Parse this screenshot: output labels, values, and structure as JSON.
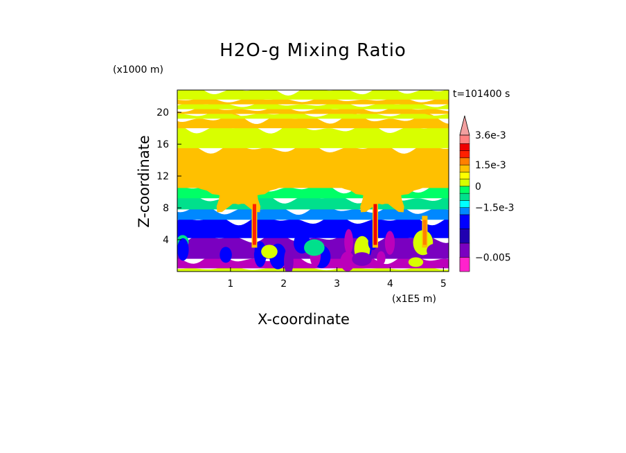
{
  "chart_data": {
    "type": "heatmap",
    "title": "H2O-g Mixing Ratio",
    "xlabel": "X-coordinate",
    "ylabel": "Z-coordinate",
    "x_unit": "(x1E5 m)",
    "z_unit": "(x1000 m)",
    "time_label": "t=101400 s",
    "xlim": [
      0,
      5.1
    ],
    "ylim": [
      0,
      22.8
    ],
    "x_ticks": [
      1,
      2,
      3,
      4,
      5
    ],
    "y_ticks": [
      4,
      8,
      12,
      16,
      20
    ],
    "x_tick_labels": [
      "1",
      "2",
      "3",
      "4",
      "5"
    ],
    "y_tick_labels": [
      "4",
      "8",
      "12",
      "16",
      "20"
    ],
    "colorbar": {
      "levels": [
        -0.006,
        -0.005,
        -0.004,
        -0.003,
        -0.002,
        -0.0015,
        -0.001,
        -0.0005,
        0,
        0.0005,
        0.001,
        0.0015,
        0.002,
        0.0025,
        0.003,
        0.0036
      ],
      "colors": [
        "#ff22cc",
        "#bb00bb",
        "#7a00c0",
        "#2000b0",
        "#0000ff",
        "#0088ff",
        "#00ffff",
        "#00e08c",
        "#00ff66",
        "#d8ff00",
        "#ffff00",
        "#ffc000",
        "#ff8000",
        "#ff2000",
        "#ee0000",
        "#ff8080",
        "#f2a0a0"
      ],
      "labels": [
        "3.6e-3",
        "1.5e-3",
        "0",
        "−1.5e-3",
        "−0.005"
      ],
      "label_values": [
        0.0036,
        0.0015,
        0,
        -0.0015,
        -0.005
      ]
    },
    "vertical_bands": [
      {
        "z": [
          0,
          0.4
        ],
        "value": 0.0002
      },
      {
        "z": [
          0.4,
          1.6
        ],
        "value": -0.0055
      },
      {
        "z": [
          1.6,
          4.2
        ],
        "value": -0.0045
      },
      {
        "z": [
          4.2,
          6.5
        ],
        "value": -0.0025
      },
      {
        "z": [
          6.5,
          7.8
        ],
        "value": -0.0017
      },
      {
        "z": [
          7.8,
          9.2
        ],
        "value": -0.0007
      },
      {
        "z": [
          9.2,
          10.5
        ],
        "value": -0.0002
      },
      {
        "z": [
          10.5,
          15.5
        ],
        "value": 0.0012
      },
      {
        "z": [
          15.5,
          18.0
        ],
        "value": 0.0003
      },
      {
        "z": [
          18.0,
          19.2
        ],
        "value": 0.0012
      },
      {
        "z": [
          19.2,
          19.8
        ],
        "value": 0.0003
      },
      {
        "z": [
          19.8,
          20.4
        ],
        "value": 0.0012
      },
      {
        "z": [
          20.4,
          21.0
        ],
        "value": 0.0003
      },
      {
        "z": [
          21.0,
          21.6
        ],
        "value": 0.0012
      },
      {
        "z": [
          21.6,
          22.8
        ],
        "value": 0.0003
      }
    ],
    "features": [
      {
        "kind": "moist-column",
        "x": 1.45,
        "z": [
          3,
          9
        ],
        "value": 0.0022
      },
      {
        "kind": "moist-column",
        "x": 3.72,
        "z": [
          3,
          9
        ],
        "value": 0.0025
      },
      {
        "kind": "moist-column",
        "x": 4.65,
        "z": [
          3,
          7
        ],
        "value": 0.0017
      },
      {
        "kind": "yellow-plume",
        "x": [
          0.5,
          1.8
        ],
        "z": [
          8,
          15
        ],
        "value": 0.0012
      },
      {
        "kind": "yellow-plume",
        "x": [
          3.2,
          4.5
        ],
        "z": [
          8,
          15
        ],
        "value": 0.0012
      }
    ]
  }
}
